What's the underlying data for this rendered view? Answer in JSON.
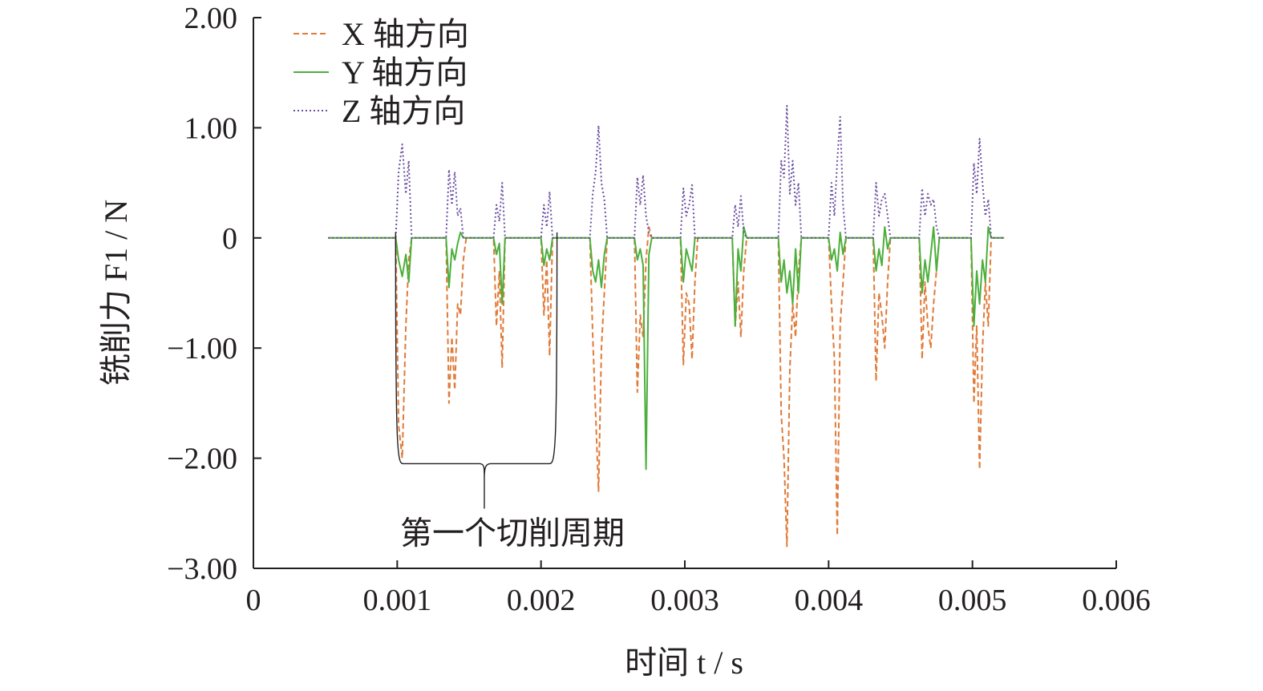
{
  "chart_data": {
    "type": "line",
    "xlabel": "时间 t / s",
    "ylabel": "铣削力 F1 / N",
    "xlim": [
      0,
      0.006
    ],
    "ylim": [
      -3.0,
      2.0
    ],
    "x_ticks": [
      "0",
      "0.001",
      "0.002",
      "0.003",
      "0.004",
      "0.005",
      "0.006"
    ],
    "y_ticks": [
      "2.00",
      "1.00",
      "0",
      "−1.00",
      "−2.00",
      "−3.00"
    ],
    "x_tick_values": [
      0,
      0.001,
      0.002,
      0.003,
      0.004,
      0.005,
      0.006
    ],
    "y_tick_values": [
      2.0,
      1.0,
      0,
      -1.0,
      -2.0,
      -3.0
    ],
    "grid": false,
    "legend_position": "top-left",
    "series": [
      {
        "name": "X 轴方向",
        "color": "#e07b39",
        "style": "dashed",
        "x": [
          0.00052,
          0.00099,
          0.00101,
          0.001035,
          0.00106,
          0.00108,
          0.0011,
          0.00134,
          0.00136,
          0.00138,
          0.0014,
          0.00142,
          0.00144,
          0.00146,
          0.00148,
          0.00167,
          0.00169,
          0.00171,
          0.00173,
          0.00175,
          0.002,
          0.00202,
          0.00204,
          0.00206,
          0.00208,
          0.00234,
          0.00236,
          0.00238,
          0.0024,
          0.00242,
          0.00244,
          0.00246,
          0.00265,
          0.00267,
          0.00269,
          0.00271,
          0.00273,
          0.00275,
          0.00277,
          0.00297,
          0.00299,
          0.00301,
          0.00303,
          0.00305,
          0.00307,
          0.00309,
          0.00333,
          0.00335,
          0.00337,
          0.00339,
          0.00341,
          0.00343,
          0.00365,
          0.00367,
          0.00369,
          0.00371,
          0.00373,
          0.00375,
          0.00377,
          0.00379,
          0.00381,
          0.004,
          0.00402,
          0.00404,
          0.00406,
          0.00408,
          0.0041,
          0.00412,
          0.00431,
          0.00433,
          0.00435,
          0.00437,
          0.00439,
          0.00441,
          0.00443,
          0.00463,
          0.00465,
          0.00467,
          0.00469,
          0.00471,
          0.00473,
          0.00475,
          0.00477,
          0.00499,
          0.00501,
          0.00503,
          0.00505,
          0.00507,
          0.00509,
          0.00511,
          0.00513,
          0.00522
        ],
        "y": [
          0,
          0,
          -1.7,
          -2.0,
          -0.8,
          -0.2,
          0,
          0,
          -1.5,
          -0.9,
          -1.38,
          -0.6,
          -0.7,
          -0.2,
          0,
          0,
          -0.8,
          -0.3,
          -1.18,
          0,
          0,
          -0.7,
          -0.2,
          -1.07,
          0,
          0,
          -0.9,
          -1.6,
          -2.3,
          -1.0,
          -0.5,
          0,
          0,
          -1.4,
          -0.7,
          -0.9,
          -0.2,
          0.1,
          0,
          0,
          -1.15,
          -0.5,
          -0.6,
          -1.1,
          -0.4,
          0,
          0,
          -0.8,
          -0.4,
          -0.9,
          -0.3,
          0,
          0,
          -1.6,
          -2.0,
          -2.8,
          -1.2,
          -0.6,
          -0.9,
          -0.3,
          0,
          0,
          -0.6,
          -1.1,
          -2.7,
          -0.8,
          -0.4,
          0,
          0,
          -1.3,
          -0.5,
          -0.7,
          -1.0,
          -0.4,
          0,
          0,
          -1.1,
          -0.4,
          -0.8,
          -1.0,
          -0.6,
          -0.3,
          0,
          0,
          -1.5,
          -0.8,
          -2.1,
          -1.0,
          -0.4,
          -0.8,
          0,
          0
        ]
      },
      {
        "name": "Y 轴方向",
        "color": "#4caf3c",
        "style": "solid",
        "x": [
          0.00052,
          0.00099,
          0.00101,
          0.001035,
          0.00106,
          0.00108,
          0.0011,
          0.00134,
          0.00136,
          0.00138,
          0.0014,
          0.00142,
          0.00144,
          0.00146,
          0.00167,
          0.00169,
          0.00171,
          0.00173,
          0.00175,
          0.002,
          0.00202,
          0.00204,
          0.00206,
          0.00208,
          0.00234,
          0.00236,
          0.00238,
          0.0024,
          0.00242,
          0.00244,
          0.00246,
          0.00265,
          0.00267,
          0.00269,
          0.00271,
          0.00273,
          0.00275,
          0.00277,
          0.00297,
          0.00299,
          0.00301,
          0.00303,
          0.00305,
          0.00307,
          0.00333,
          0.00335,
          0.00337,
          0.00339,
          0.00341,
          0.00343,
          0.00365,
          0.00367,
          0.00369,
          0.00371,
          0.00373,
          0.00375,
          0.00377,
          0.00379,
          0.00381,
          0.004,
          0.00402,
          0.00404,
          0.00406,
          0.00408,
          0.0041,
          0.00412,
          0.00431,
          0.00433,
          0.00435,
          0.00437,
          0.00439,
          0.00441,
          0.00443,
          0.00463,
          0.00465,
          0.00467,
          0.00469,
          0.00471,
          0.00473,
          0.00475,
          0.00477,
          0.00499,
          0.00501,
          0.00503,
          0.00505,
          0.00507,
          0.00509,
          0.00511,
          0.00513,
          0.00522
        ],
        "y": [
          0,
          0,
          -0.2,
          -0.35,
          -0.15,
          -0.4,
          0,
          0,
          -0.45,
          -0.1,
          -0.2,
          -0.05,
          0.05,
          0,
          0,
          -0.15,
          -0.05,
          -0.6,
          0,
          0,
          -0.25,
          -0.1,
          -0.2,
          0,
          0,
          -0.3,
          -0.4,
          -0.2,
          -0.45,
          -0.15,
          0,
          0,
          -0.2,
          -0.1,
          -0.25,
          -2.1,
          -0.15,
          0,
          0,
          -0.4,
          -0.1,
          -0.2,
          -0.3,
          0,
          0,
          -0.8,
          -0.1,
          -0.3,
          0.1,
          0,
          0,
          -0.4,
          -0.2,
          -0.5,
          -0.3,
          -0.6,
          -0.1,
          -0.5,
          0,
          0,
          -0.2,
          -0.1,
          -0.3,
          0.05,
          -0.15,
          0,
          0,
          -0.3,
          -0.1,
          -0.25,
          0.1,
          -0.1,
          0,
          0,
          -0.5,
          -0.2,
          -0.4,
          -0.15,
          0.1,
          -0.3,
          0,
          0,
          -0.8,
          -0.3,
          -0.6,
          -0.2,
          -0.4,
          0.1,
          0,
          0
        ]
      },
      {
        "name": "Z 轴方向",
        "color": "#6a4fa0",
        "style": "dotted",
        "x": [
          0.00052,
          0.00099,
          0.00101,
          0.001035,
          0.00106,
          0.00108,
          0.0011,
          0.00134,
          0.00136,
          0.00138,
          0.0014,
          0.00142,
          0.00144,
          0.00146,
          0.00167,
          0.00169,
          0.00171,
          0.00173,
          0.00175,
          0.002,
          0.00202,
          0.00204,
          0.00206,
          0.00208,
          0.00234,
          0.00236,
          0.00238,
          0.0024,
          0.00242,
          0.00244,
          0.00246,
          0.00265,
          0.00267,
          0.00269,
          0.00271,
          0.00273,
          0.00275,
          0.00277,
          0.00297,
          0.00299,
          0.00301,
          0.00303,
          0.00305,
          0.00307,
          0.00333,
          0.00335,
          0.00337,
          0.00339,
          0.00341,
          0.00343,
          0.00365,
          0.00367,
          0.00369,
          0.00371,
          0.00373,
          0.00375,
          0.00377,
          0.00379,
          0.00381,
          0.004,
          0.00402,
          0.00404,
          0.00406,
          0.00408,
          0.0041,
          0.00412,
          0.00431,
          0.00433,
          0.00435,
          0.00437,
          0.00439,
          0.00441,
          0.00443,
          0.00463,
          0.00465,
          0.00467,
          0.00469,
          0.00471,
          0.00473,
          0.00475,
          0.00477,
          0.00499,
          0.00501,
          0.00503,
          0.00505,
          0.00507,
          0.00509,
          0.00511,
          0.00513,
          0.00522
        ],
        "y": [
          0,
          0,
          0.6,
          0.85,
          0.4,
          0.7,
          0,
          0,
          0.62,
          0.3,
          0.6,
          0.2,
          0.27,
          0,
          0,
          0.3,
          0.15,
          0.5,
          0,
          0,
          0.3,
          0.1,
          0.42,
          0,
          0,
          0.4,
          0.6,
          1.02,
          0.5,
          0.35,
          0,
          0,
          0.55,
          0.3,
          0.57,
          0.2,
          0.05,
          0,
          0,
          0.45,
          0.2,
          0.3,
          0.48,
          0,
          0,
          0.3,
          0.1,
          0.38,
          0.05,
          0,
          0,
          0.7,
          0.55,
          1.2,
          0.4,
          0.7,
          0.3,
          0.5,
          0,
          0,
          0.5,
          0.2,
          0.7,
          1.1,
          0.3,
          0,
          0,
          0.5,
          0.2,
          0.35,
          0.4,
          0.2,
          0,
          0,
          0.45,
          0.2,
          0.4,
          0.3,
          0.35,
          0.1,
          0,
          0,
          0.68,
          0.4,
          0.9,
          0.5,
          0.2,
          0.35,
          0,
          0
        ]
      }
    ],
    "annotation": {
      "text": "第一个切削周期",
      "x_start": 0.001,
      "x_end": 0.0021,
      "y_bracket": -2.05
    }
  }
}
